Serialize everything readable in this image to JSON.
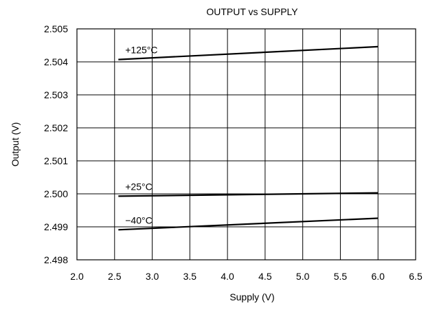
{
  "chart_data": {
    "type": "line",
    "title": "OUTPUT vs SUPPLY",
    "xlabel": "Supply (V)",
    "ylabel": "Output (V)",
    "xlim": [
      2.0,
      6.5
    ],
    "ylim": [
      2.498,
      2.505
    ],
    "x_ticks": [
      "2.0",
      "2.5",
      "3.0",
      "3.5",
      "4.0",
      "4.5",
      "5.0",
      "5.5",
      "6.0",
      "6.5"
    ],
    "y_ticks": [
      "2.498",
      "2.499",
      "2.500",
      "2.501",
      "2.502",
      "2.503",
      "2.504",
      "2.505"
    ],
    "grid": true,
    "legend": "none",
    "series": [
      {
        "name": "+125°C",
        "x": [
          2.55,
          6.0
        ],
        "y": [
          2.50407,
          2.50446
        ]
      },
      {
        "name": "+25°C",
        "x": [
          2.55,
          6.0
        ],
        "y": [
          2.49993,
          2.50003
        ]
      },
      {
        "name": "−40°C",
        "x": [
          2.55,
          6.0
        ],
        "y": [
          2.49891,
          2.49926
        ]
      }
    ],
    "colors": {
      "line": "#000000",
      "grid": "#000000",
      "background": "#ffffff"
    }
  }
}
